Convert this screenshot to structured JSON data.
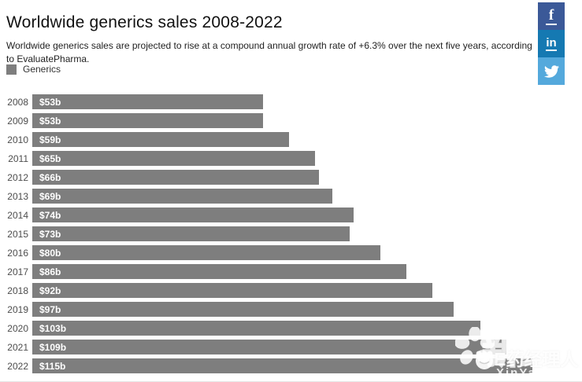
{
  "header": {
    "title": "Worldwide generics sales 2008-2022",
    "subtitle": "Worldwide generics sales are projected to rise at a compound annual growth rate of +6.3% over the next five years, according to EvaluatePharma."
  },
  "legend": {
    "label": "Generics",
    "swatch_color": "#7e7e7e"
  },
  "social": {
    "facebook": {
      "label": "f",
      "color": "#3b5998"
    },
    "linkedin": {
      "label": "in",
      "color": "#1579b2"
    },
    "twitter": {
      "color": "#54a9dc"
    }
  },
  "chart_data": {
    "type": "bar",
    "orientation": "horizontal",
    "title": "Worldwide generics sales 2008-2022",
    "series_name": "Generics",
    "categories": [
      "2008",
      "2009",
      "2010",
      "2011",
      "2012",
      "2013",
      "2014",
      "2015",
      "2016",
      "2017",
      "2018",
      "2019",
      "2020",
      "2021",
      "2022"
    ],
    "values": [
      53,
      53,
      59,
      65,
      66,
      69,
      74,
      73,
      80,
      86,
      92,
      97,
      103,
      109,
      115
    ],
    "labels": [
      "$53b",
      "$53b",
      "$59b",
      "$65b",
      "$66b",
      "$69b",
      "$74b",
      "$73b",
      "$80b",
      "$86b",
      "$92b",
      "$97b",
      "$103b",
      "$109b",
      "$115b"
    ],
    "unit": "USD billions",
    "bar_color": "#7e7e7e",
    "xlim": [
      0,
      125
    ],
    "xlabel": "",
    "ylabel": "",
    "grid": false,
    "legend_position": "top-left"
  },
  "watermark": {
    "brand": "E药经理人",
    "brand_outline": "新药汇",
    "site": "XinYaoHui.com"
  }
}
